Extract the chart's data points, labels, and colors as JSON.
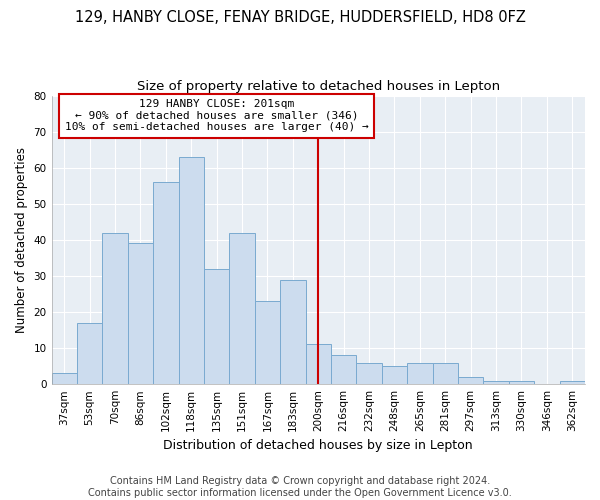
{
  "title": "129, HANBY CLOSE, FENAY BRIDGE, HUDDERSFIELD, HD8 0FZ",
  "subtitle": "Size of property relative to detached houses in Lepton",
  "xlabel": "Distribution of detached houses by size in Lepton",
  "ylabel": "Number of detached properties",
  "categories": [
    "37sqm",
    "53sqm",
    "70sqm",
    "86sqm",
    "102sqm",
    "118sqm",
    "135sqm",
    "151sqm",
    "167sqm",
    "183sqm",
    "200sqm",
    "216sqm",
    "232sqm",
    "248sqm",
    "265sqm",
    "281sqm",
    "297sqm",
    "313sqm",
    "330sqm",
    "346sqm",
    "362sqm"
  ],
  "values": [
    3,
    17,
    42,
    39,
    56,
    63,
    32,
    42,
    23,
    29,
    11,
    8,
    6,
    5,
    6,
    6,
    2,
    1,
    1,
    0,
    1
  ],
  "bar_color": "#ccdcee",
  "bar_edge_color": "#7aaad0",
  "vline_x_index": 10,
  "vline_color": "#cc0000",
  "annotation_text": "129 HANBY CLOSE: 201sqm\n← 90% of detached houses are smaller (346)\n10% of semi-detached houses are larger (40) →",
  "annotation_box_color": "#ffffff",
  "annotation_box_edge": "#cc0000",
  "footer": "Contains HM Land Registry data © Crown copyright and database right 2024.\nContains public sector information licensed under the Open Government Licence v3.0.",
  "bg_color": "#ffffff",
  "plot_bg_color": "#e8eef4",
  "ylim": [
    0,
    80
  ],
  "yticks": [
    0,
    10,
    20,
    30,
    40,
    50,
    60,
    70,
    80
  ],
  "title_fontsize": 10.5,
  "subtitle_fontsize": 9.5,
  "xlabel_fontsize": 9,
  "ylabel_fontsize": 8.5,
  "tick_fontsize": 7.5,
  "footer_fontsize": 7,
  "annot_fontsize": 8
}
